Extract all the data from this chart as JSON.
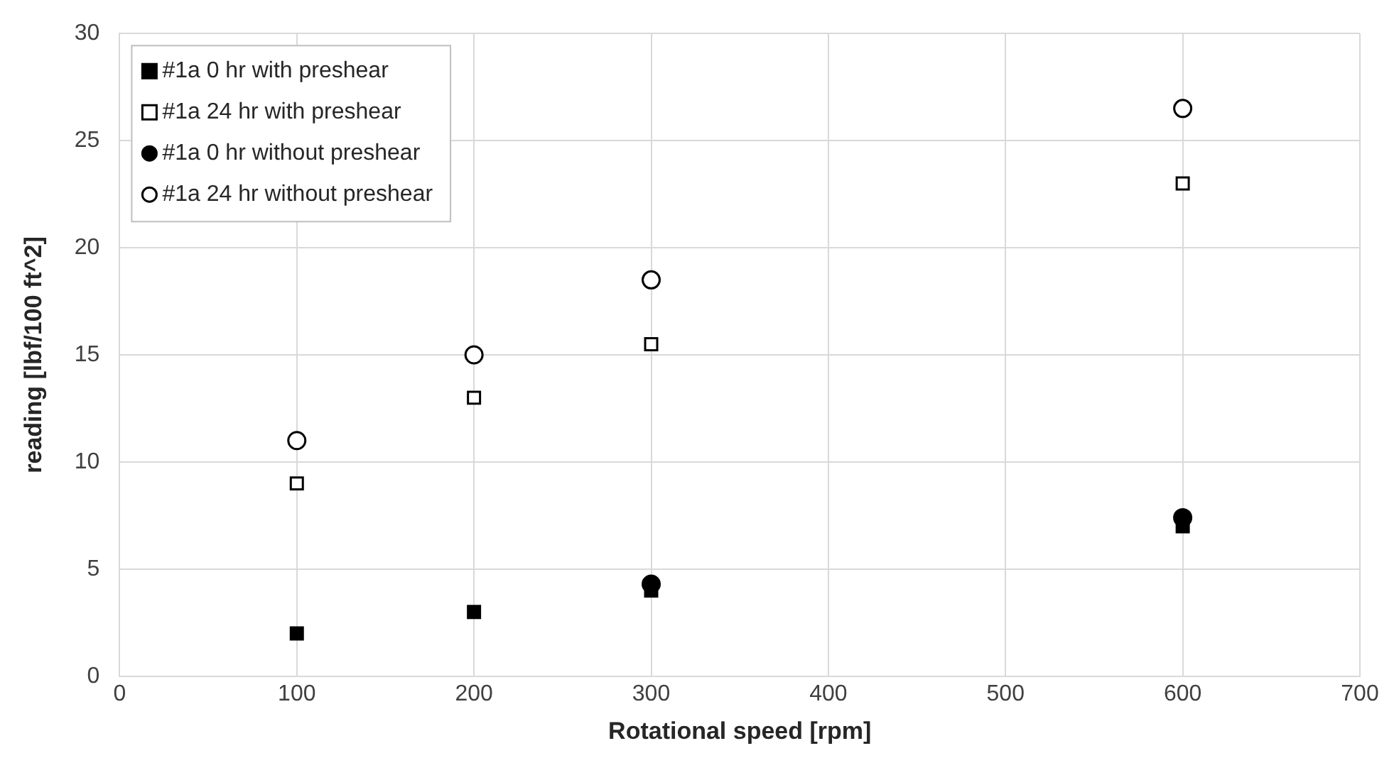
{
  "chart_data": {
    "type": "scatter",
    "xlabel": "Rotational speed [rpm]",
    "ylabel": "reading [lbf/100 ft^2]",
    "x": [
      100,
      200,
      300,
      600
    ],
    "series": [
      {
        "name": "#1a 0 hr with preshear",
        "color": "#000000",
        "marker": "square",
        "values": [
          2,
          3,
          4,
          7
        ]
      },
      {
        "name": "#1a 24 hr with preshear",
        "color": "#ffffff",
        "marker": "square",
        "values": [
          9,
          13,
          15.5,
          23
        ]
      },
      {
        "name": "#1a 0 hr without preshear",
        "color": "#000000",
        "marker": "circle",
        "values": [
          null,
          null,
          4.3,
          7.4
        ]
      },
      {
        "name": "#1a 24 hr without preshear",
        "color": "#ffffff",
        "marker": "circle",
        "values": [
          11,
          15,
          18.5,
          26.5
        ]
      }
    ],
    "xlim": [
      0,
      700
    ],
    "xticks": [
      0,
      100,
      200,
      300,
      400,
      500,
      600,
      700
    ],
    "ylim": [
      0,
      30
    ],
    "yticks": [
      0,
      5,
      10,
      15,
      20,
      25,
      30
    ],
    "grid": true,
    "legend": "top left"
  }
}
